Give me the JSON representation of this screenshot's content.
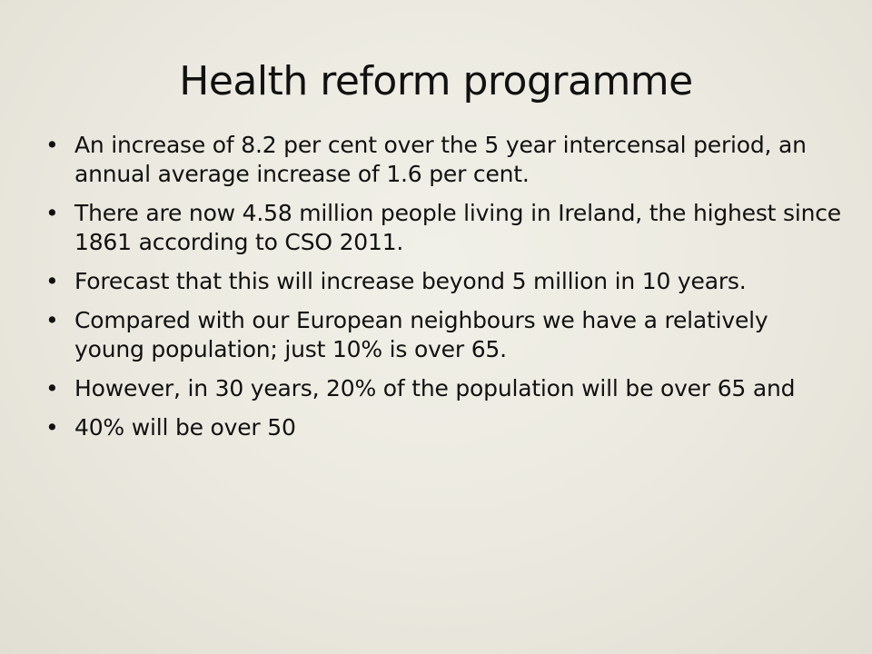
{
  "slide": {
    "title": "Health reform programme",
    "bullet_glyph": "•",
    "bullets": [
      "An increase of 8.2 per cent over the 5 year intercensal period, an annual average increase of 1.6 per cent.",
      "There are now 4.58 million people living in Ireland, the highest since 1861 according to CSO 2011.",
      "Forecast that this will increase beyond 5 million in 10 years.",
      "Compared with our European neighbours we have a relatively young population; just 10% is over 65.",
      "However, in 30 years, 20% of the population will be over 65 and",
      "40% will be over 50"
    ]
  }
}
